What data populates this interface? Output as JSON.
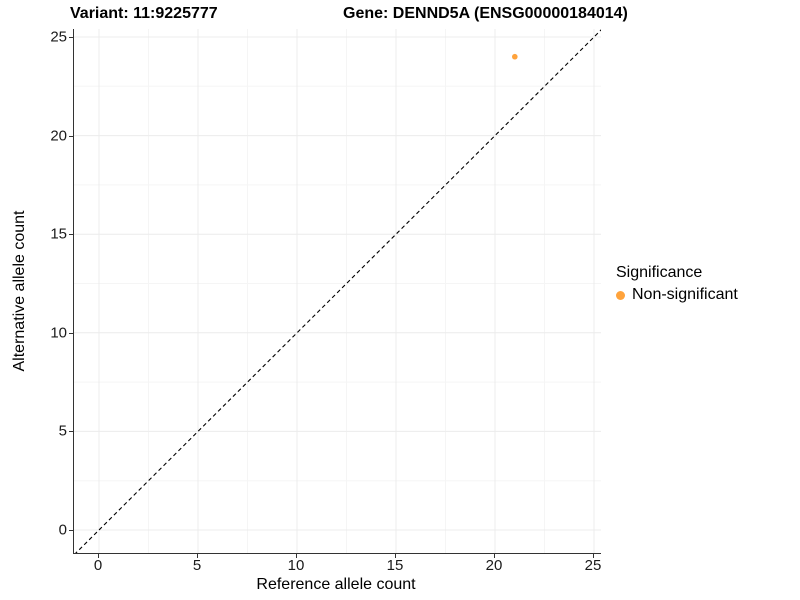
{
  "header": {
    "variant_title": "Variant: 11:9225777",
    "gene_title": "Gene: DENND5A (ENSG00000184014)"
  },
  "chart_data": {
    "type": "scatter",
    "xlabel": "Reference allele count",
    "ylabel": "Alternative allele count",
    "xlim": [
      -1.3,
      25.4
    ],
    "ylim": [
      -1.2,
      25.4
    ],
    "xticks": [
      0,
      5,
      10,
      15,
      20,
      25
    ],
    "yticks": [
      0,
      5,
      10,
      15,
      20,
      25
    ],
    "xminor": [
      2.5,
      7.5,
      12.5,
      17.5,
      22.5
    ],
    "yminor": [
      2.5,
      7.5,
      12.5,
      17.5,
      22.5
    ],
    "grid": "major+minor",
    "identity_line": {
      "slope": 1,
      "intercept": 0,
      "style": "dashed",
      "color": "#000000"
    },
    "series": [
      {
        "name": "Non-significant",
        "color": "#FFA33C",
        "points": [
          {
            "x": 21,
            "y": 24
          }
        ]
      }
    ],
    "legend": {
      "title": "Significance",
      "position": "right",
      "items": [
        {
          "label": "Non-significant",
          "color": "#FFA33C"
        }
      ]
    },
    "colors": {
      "point": "#FFA33C",
      "grid_major": "#ECECEC",
      "grid_minor": "#F5F5F5",
      "axis_line": "#333333"
    }
  }
}
